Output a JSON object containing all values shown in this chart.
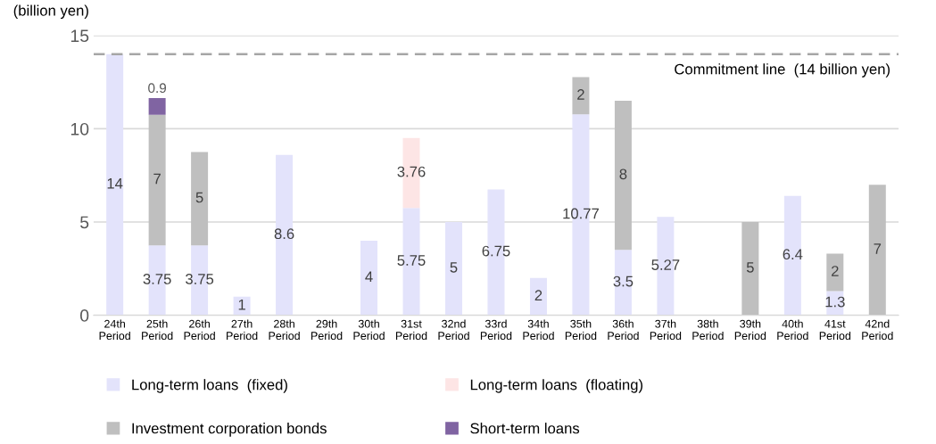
{
  "chart_data": {
    "type": "bar",
    "stacked": true,
    "ylabel": "(billion yen)",
    "categories": [
      "24th\nPeriod",
      "25th\nPeriod",
      "26th\nPeriod",
      "27th\nPeriod",
      "28th\nPeriod",
      "29th\nPeriod",
      "30th\nPeriod",
      "31st\nPeriod",
      "32nd\nPeriod",
      "33rd\nPeriod",
      "34th\nPeriod",
      "35th\nPeriod",
      "36th\nPeriod",
      "37th\nPeriod",
      "38th\nPeriod",
      "39th\nPeriod",
      "40th\nPeriod",
      "41st\nPeriod",
      "42nd\nPeriod"
    ],
    "series": [
      {
        "name": "Long-term loans  (fixed)",
        "color": "#e3e3fb",
        "values": [
          14,
          3.75,
          3.75,
          1,
          8.6,
          null,
          4,
          5.75,
          5,
          6.75,
          2,
          10.77,
          3.5,
          5.27,
          null,
          null,
          6.4,
          1.3,
          null
        ]
      },
      {
        "name": "Long-term loans  (floating)",
        "color": "#fde5e5",
        "values": [
          null,
          null,
          null,
          null,
          null,
          null,
          null,
          3.76,
          null,
          null,
          null,
          null,
          null,
          null,
          null,
          null,
          null,
          null,
          null
        ]
      },
      {
        "name": "Investment corporation bonds",
        "color": "#bfbfbf",
        "values": [
          null,
          7,
          5,
          null,
          null,
          null,
          null,
          null,
          null,
          null,
          null,
          2,
          8,
          null,
          null,
          5,
          null,
          2,
          7
        ]
      },
      {
        "name": "Short-term loans",
        "color": "#8064a2",
        "values": [
          null,
          0.9,
          null,
          null,
          null,
          null,
          null,
          null,
          null,
          null,
          null,
          null,
          null,
          null,
          null,
          null,
          null,
          null,
          null
        ]
      }
    ],
    "ylim": [
      0,
      15
    ],
    "yticks": [
      0,
      5,
      10,
      15
    ],
    "grid": "y",
    "legend": "bottom",
    "data_labels": true,
    "ref_lines": [
      {
        "axis": "y",
        "value": 14,
        "label": "Commitment line  (14 billion yen)",
        "color": "#a6a6a6",
        "line_style": "dashed"
      }
    ]
  }
}
